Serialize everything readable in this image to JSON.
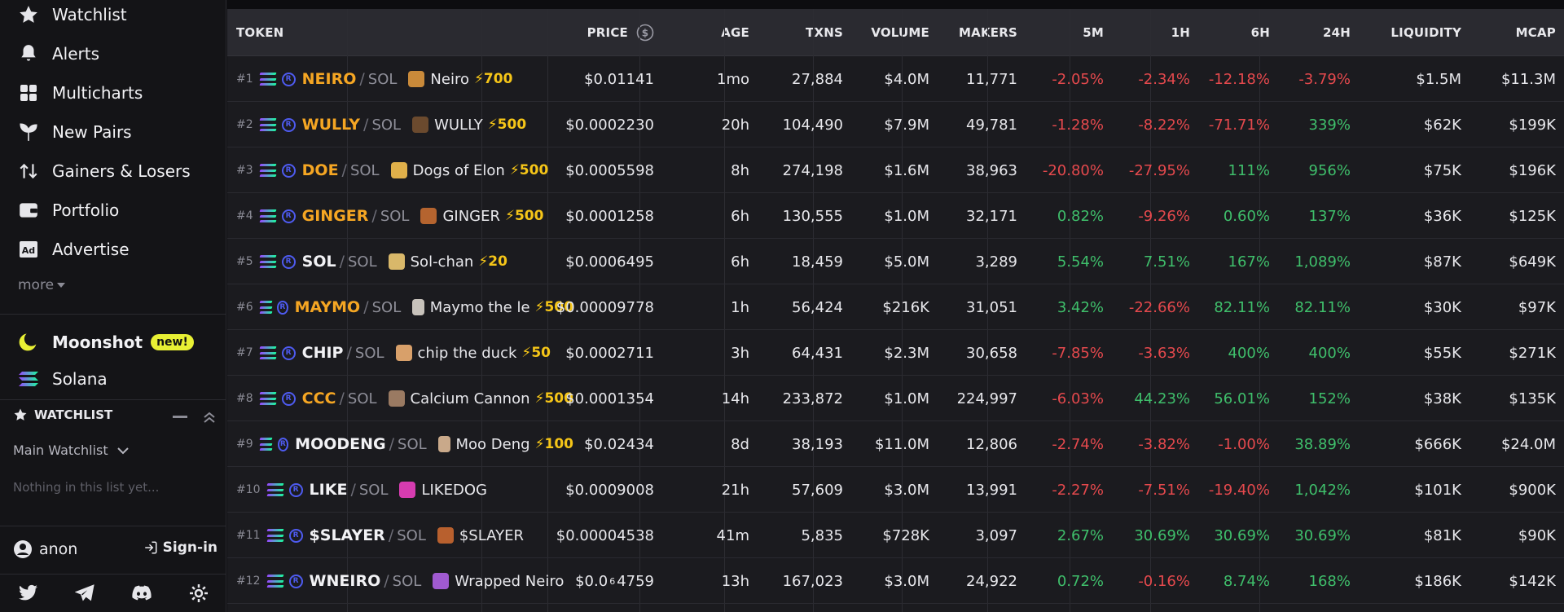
{
  "sidebar": {
    "nav": [
      {
        "label": "Watchlist",
        "icon": "star-icon"
      },
      {
        "label": "Alerts",
        "icon": "bell-icon"
      },
      {
        "label": "Multicharts",
        "icon": "grid-icon"
      },
      {
        "label": "New Pairs",
        "icon": "sprout-icon"
      },
      {
        "label": "Gainers & Losers",
        "icon": "arrows-up-down-icon"
      },
      {
        "label": "Portfolio",
        "icon": "wallet-icon"
      },
      {
        "label": "Advertise",
        "icon": "ad-icon"
      }
    ],
    "more_label": "more",
    "moonshot": {
      "label": "Moonshot",
      "badge": "new!"
    },
    "solana_label": "Solana",
    "watchlist_title": "WATCHLIST",
    "watchlist_select": "Main Watchlist",
    "watchlist_empty": "Nothing in this list yet...",
    "user_name": "anon",
    "signin_label": "Sign-in"
  },
  "table": {
    "headers": {
      "token": "TOKEN",
      "price": "PRICE",
      "age": "AGE",
      "txns": "TXNS",
      "volume": "VOLUME",
      "makers": "MAKERS",
      "m5": "5M",
      "h1": "1H",
      "h6": "6H",
      "h24": "24H",
      "liquidity": "LIQUIDITY",
      "mcap": "MCAP"
    },
    "rows": [
      {
        "rank": "#1",
        "symbol": "NEIRO",
        "quote": "SOL",
        "name": "Neiro",
        "boost": "⚡700",
        "boosted": true,
        "price": "$0.01141",
        "age": "1mo",
        "txns": "27,884",
        "volume": "$4.0M",
        "makers": "11,771",
        "m5": "-2.05%",
        "h1": "-2.34%",
        "h6": "-12.18%",
        "h24": "-3.79%",
        "liquidity": "$1.5M",
        "mcap": "$11.3M",
        "avatar_color": "#c98a3a"
      },
      {
        "rank": "#2",
        "symbol": "WULLY",
        "quote": "SOL",
        "name": "WULLY",
        "boost": "⚡500",
        "boosted": true,
        "price": "$0.0002230",
        "age": "20h",
        "txns": "104,490",
        "volume": "$7.9M",
        "makers": "49,781",
        "m5": "-1.28%",
        "h1": "-8.22%",
        "h6": "-71.71%",
        "h24": "339%",
        "liquidity": "$62K",
        "mcap": "$199K",
        "avatar_color": "#6b4a2e"
      },
      {
        "rank": "#3",
        "symbol": "DOE",
        "quote": "SOL",
        "name": "Dogs of Elon",
        "boost": "⚡500",
        "boosted": true,
        "price": "$0.0005598",
        "age": "8h",
        "txns": "274,198",
        "volume": "$1.6M",
        "makers": "38,963",
        "m5": "-20.80%",
        "h1": "-27.95%",
        "h6": "111%",
        "h24": "956%",
        "liquidity": "$75K",
        "mcap": "$196K",
        "avatar_color": "#e0b04a"
      },
      {
        "rank": "#4",
        "symbol": "GINGER",
        "quote": "SOL",
        "name": "GINGER",
        "boost": "⚡500",
        "boosted": true,
        "price": "$0.0001258",
        "age": "6h",
        "txns": "130,555",
        "volume": "$1.0M",
        "makers": "32,171",
        "m5": "0.82%",
        "h1": "-9.26%",
        "h6": "0.60%",
        "h24": "137%",
        "liquidity": "$36K",
        "mcap": "$125K",
        "avatar_color": "#b5642f"
      },
      {
        "rank": "#5",
        "symbol": "SOL",
        "quote": "SOL",
        "name": "Sol-chan",
        "boost": "⚡20",
        "boosted": false,
        "price": "$0.0006495",
        "age": "6h",
        "txns": "18,459",
        "volume": "$5.0M",
        "makers": "3,289",
        "m5": "5.54%",
        "h1": "7.51%",
        "h6": "167%",
        "h24": "1,089%",
        "liquidity": "$87K",
        "mcap": "$649K",
        "avatar_color": "#d9b86a"
      },
      {
        "rank": "#6",
        "symbol": "MAYMO",
        "quote": "SOL",
        "name": "Maymo the le",
        "boost": "⚡500",
        "boosted": true,
        "price": "$0.00009778",
        "age": "1h",
        "txns": "56,424",
        "volume": "$216K",
        "makers": "31,051",
        "m5": "3.42%",
        "h1": "-22.66%",
        "h6": "82.11%",
        "h24": "82.11%",
        "liquidity": "$30K",
        "mcap": "$97K",
        "avatar_color": "#c7c2bb"
      },
      {
        "rank": "#7",
        "symbol": "CHIP",
        "quote": "SOL",
        "name": "chip the duck",
        "boost": "⚡50",
        "boosted": false,
        "price": "$0.0002711",
        "age": "3h",
        "txns": "64,431",
        "volume": "$2.3M",
        "makers": "30,658",
        "m5": "-7.85%",
        "h1": "-3.63%",
        "h6": "400%",
        "h24": "400%",
        "liquidity": "$55K",
        "mcap": "$271K",
        "avatar_color": "#d8a06a"
      },
      {
        "rank": "#8",
        "symbol": "CCC",
        "quote": "SOL",
        "name": "Calcium Cannon",
        "boost": "⚡500",
        "boosted": true,
        "price": "$0.0001354",
        "age": "14h",
        "txns": "233,872",
        "volume": "$1.0M",
        "makers": "224,997",
        "m5": "-6.03%",
        "h1": "44.23%",
        "h6": "56.01%",
        "h24": "152%",
        "liquidity": "$38K",
        "mcap": "$135K",
        "avatar_color": "#9a7a62"
      },
      {
        "rank": "#9",
        "symbol": "MOODENG",
        "quote": "SOL",
        "name": "Moo Deng",
        "boost": "⚡100",
        "boosted": false,
        "price": "$0.02434",
        "age": "8d",
        "txns": "38,193",
        "volume": "$11.0M",
        "makers": "12,806",
        "m5": "-2.74%",
        "h1": "-3.82%",
        "h6": "-1.00%",
        "h24": "38.89%",
        "liquidity": "$666K",
        "mcap": "$24.0M",
        "avatar_color": "#c9a98a"
      },
      {
        "rank": "#10",
        "symbol": "LIKE",
        "quote": "SOL",
        "name": "LIKEDOG",
        "boost": "",
        "boosted": false,
        "price": "$0.0009008",
        "age": "21h",
        "txns": "57,609",
        "volume": "$3.0M",
        "makers": "13,991",
        "m5": "-2.27%",
        "h1": "-7.51%",
        "h6": "-19.40%",
        "h24": "1,042%",
        "liquidity": "$101K",
        "mcap": "$900K",
        "avatar_color": "#d63cb0"
      },
      {
        "rank": "#11",
        "symbol": "$SLAYER",
        "quote": "SOL",
        "name": "$SLAYER",
        "boost": "",
        "boosted": false,
        "price": "$0.00004538",
        "age": "41m",
        "txns": "5,835",
        "volume": "$728K",
        "makers": "3,097",
        "m5": "2.67%",
        "h1": "30.69%",
        "h6": "30.69%",
        "h24": "30.69%",
        "liquidity": "$81K",
        "mcap": "$90K",
        "avatar_color": "#b8602e"
      },
      {
        "rank": "#12",
        "symbol": "WNEIRO",
        "quote": "SOL",
        "name": "Wrapped Neiro",
        "boost": "",
        "boosted": false,
        "price_a": "$0.0",
        "price_sub": "6",
        "price_b": "4759",
        "age": "13h",
        "txns": "167,023",
        "volume": "$3.0M",
        "makers": "24,922",
        "m5": "0.72%",
        "h1": "-0.16%",
        "h6": "8.74%",
        "h24": "168%",
        "liquidity": "$186K",
        "mcap": "$142K",
        "avatar_color": "#a05ad0"
      }
    ]
  },
  "colors": {
    "accent": "#f5a623",
    "negative": "#e5494d",
    "positive": "#3fbf6b",
    "bolt": "#f5c518",
    "badge": "#e8f034"
  }
}
